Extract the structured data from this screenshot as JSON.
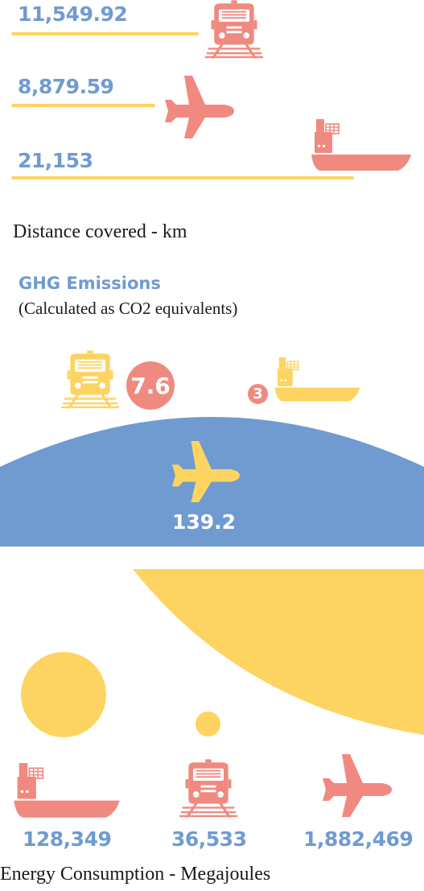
{
  "colors": {
    "blue": "#6f9bd1",
    "yellow": "#fdd462",
    "salmon": "#f08a80"
  },
  "icons": {
    "train": "train-icon",
    "plane": "airplane-icon",
    "ship": "ship-icon"
  },
  "chart_data": [
    {
      "type": "bar",
      "title": "",
      "categories": [
        "train",
        "plane",
        "ship"
      ],
      "values": [
        11549.92,
        8879.59,
        21153
      ],
      "labels": [
        "11,549.92",
        "8,879.59",
        "21,153"
      ],
      "caption": "Distance covered - km"
    },
    {
      "type": "bubble",
      "title": "GHG Emissions",
      "subtitle": "(Calculated as CO2 equivalents)",
      "categories": [
        "train",
        "ship",
        "plane"
      ],
      "values": [
        7.6,
        3,
        139.2
      ],
      "labels": [
        "7.6",
        "3",
        "139.2"
      ]
    },
    {
      "type": "bubble",
      "categories": [
        "ship",
        "train",
        "plane"
      ],
      "values": [
        128349,
        36533,
        1882469
      ],
      "labels": [
        "128,349",
        "36,533",
        "1,882,469"
      ],
      "caption": "Energy Consumption - Megajoules"
    }
  ]
}
